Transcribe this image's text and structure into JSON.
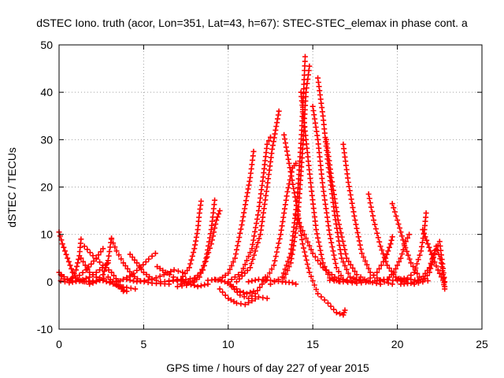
{
  "chart_data": {
    "type": "scatter",
    "title": "dSTEC Iono. truth (acor, Lon=351, Lat=43, h=67): STEC-STEC_elemax in phase cont. a",
    "xlabel": "GPS time / hours of day 227 of year 2015",
    "ylabel": "dSTEC  / TECUs",
    "xlim": [
      0,
      25
    ],
    "ylim": [
      -10,
      50
    ],
    "xticks": [
      "0",
      "5",
      "10",
      "15",
      "20",
      "25"
    ],
    "yticks": [
      "-10",
      "0",
      "10",
      "20",
      "30",
      "40",
      "50"
    ],
    "grid": true,
    "marker": "+",
    "color": "#ff0000",
    "series": [
      {
        "values": [
          [
            0.0,
            10.5
          ],
          [
            0.2,
            8
          ],
          [
            0.5,
            5
          ],
          [
            0.8,
            2
          ],
          [
            1.1,
            0.5
          ],
          [
            1.5,
            0
          ],
          [
            2.0,
            0.2
          ]
        ]
      },
      {
        "values": [
          [
            0.0,
            2.0
          ],
          [
            0.3,
            0.6
          ],
          [
            0.7,
            0.2
          ],
          [
            1.0,
            2.5
          ],
          [
            1.2,
            5.5
          ],
          [
            1.3,
            9.0
          ]
        ]
      },
      {
        "values": [
          [
            0.1,
            1.5
          ],
          [
            0.5,
            0.6
          ],
          [
            1.0,
            0.8
          ],
          [
            1.6,
            2.5
          ],
          [
            2.2,
            5.0
          ],
          [
            2.6,
            7.0
          ]
        ]
      },
      {
        "values": [
          [
            0.1,
            0.2
          ],
          [
            0.6,
            -0.2
          ],
          [
            1.2,
            0.2
          ],
          [
            1.8,
            1.0
          ],
          [
            2.4,
            2.5
          ],
          [
            2.9,
            4.0
          ]
        ]
      },
      {
        "values": [
          [
            1.3,
            5.0
          ],
          [
            1.8,
            2.0
          ],
          [
            2.4,
            0.5
          ],
          [
            3.0,
            -0.2
          ],
          [
            3.6,
            -1.0
          ],
          [
            4.0,
            -1.2
          ],
          [
            4.5,
            -1.5
          ]
        ]
      },
      {
        "values": [
          [
            1.5,
            7.5
          ],
          [
            2.0,
            5.5
          ],
          [
            2.6,
            3.5
          ],
          [
            3.1,
            2.0
          ],
          [
            3.5,
            0.0
          ],
          [
            3.8,
            -2.0
          ]
        ]
      },
      {
        "values": [
          [
            1.8,
            -0.5
          ],
          [
            2.4,
            0.3
          ],
          [
            2.9,
            1.0
          ],
          [
            3.3,
            -0.5
          ],
          [
            3.7,
            -1.5
          ],
          [
            4.0,
            -2.0
          ]
        ]
      },
      {
        "values": [
          [
            1.0,
            0.2
          ],
          [
            1.6,
            0.0
          ],
          [
            2.2,
            0.2
          ],
          [
            2.6,
            1.5
          ],
          [
            2.9,
            4.5
          ],
          [
            3.1,
            9.2
          ]
        ]
      },
      {
        "values": [
          [
            3.1,
            9.0
          ],
          [
            3.4,
            6.5
          ],
          [
            3.8,
            4.0
          ],
          [
            4.3,
            1.5
          ],
          [
            4.8,
            0.2
          ],
          [
            5.5,
            -0.3
          ],
          [
            6.5,
            -0.5
          ]
        ]
      },
      {
        "values": [
          [
            3.0,
            0.0
          ],
          [
            3.6,
            0.2
          ],
          [
            4.2,
            1.2
          ],
          [
            4.8,
            3.0
          ],
          [
            5.3,
            4.8
          ],
          [
            5.7,
            6.0
          ]
        ]
      },
      {
        "values": [
          [
            4.2,
            5.8
          ],
          [
            4.6,
            4.0
          ],
          [
            5.0,
            2.0
          ],
          [
            5.5,
            0.6
          ],
          [
            6.0,
            0.0
          ],
          [
            7.0,
            0.2
          ],
          [
            8.0,
            0.8
          ]
        ]
      },
      {
        "values": [
          [
            4.0,
            0.5
          ],
          [
            4.6,
            0.0
          ],
          [
            5.5,
            0.5
          ],
          [
            6.2,
            1.5
          ],
          [
            6.8,
            2.5
          ],
          [
            7.3,
            2.0
          ]
        ]
      },
      {
        "values": [
          [
            5.8,
            3.2
          ],
          [
            6.3,
            2.0
          ],
          [
            7.0,
            0.5
          ],
          [
            7.6,
            -0.3
          ],
          [
            8.2,
            -1.0
          ],
          [
            8.8,
            -0.5
          ]
        ]
      },
      {
        "values": [
          [
            6.5,
            0.2
          ],
          [
            7.2,
            0.5
          ],
          [
            7.7,
            3.0
          ],
          [
            8.0,
            7.0
          ],
          [
            8.2,
            11.0
          ],
          [
            8.3,
            14.5
          ],
          [
            8.4,
            17.0
          ]
        ]
      },
      {
        "values": [
          [
            7.2,
            -0.5
          ],
          [
            7.9,
            0.2
          ],
          [
            8.5,
            2.5
          ],
          [
            9.0,
            8.0
          ],
          [
            9.3,
            13.0
          ],
          [
            9.5,
            15.0
          ]
        ]
      },
      {
        "values": [
          [
            7.0,
            -1.0
          ],
          [
            7.8,
            -0.6
          ],
          [
            8.3,
            1.0
          ],
          [
            8.7,
            5.0
          ],
          [
            9.0,
            11.0
          ],
          [
            9.2,
            17.2
          ]
        ]
      },
      {
        "values": [
          [
            8.8,
            0.3
          ],
          [
            9.5,
            0.5
          ],
          [
            10.0,
            1.8
          ],
          [
            10.4,
            5.0
          ],
          [
            10.8,
            12.0
          ],
          [
            11.1,
            18.0
          ],
          [
            11.3,
            22.0
          ],
          [
            11.5,
            27.5
          ]
        ]
      },
      {
        "values": [
          [
            9.2,
            0.5
          ],
          [
            9.8,
            0.0
          ],
          [
            10.3,
            -1.0
          ],
          [
            10.7,
            -2.0
          ],
          [
            11.1,
            -2.5
          ],
          [
            11.5,
            -2.0
          ]
        ]
      },
      {
        "values": [
          [
            9.5,
            -1.5
          ],
          [
            10.0,
            -3.5
          ],
          [
            10.5,
            -4.5
          ],
          [
            11.0,
            -4.8
          ],
          [
            11.4,
            -4.0
          ],
          [
            11.8,
            -3.2
          ],
          [
            12.3,
            -3.5
          ]
        ]
      },
      {
        "values": [
          [
            10.2,
            -1.0
          ],
          [
            10.7,
            -2.8
          ],
          [
            11.2,
            -3.5
          ],
          [
            11.6,
            -2.5
          ],
          [
            12.0,
            -0.5
          ],
          [
            12.2,
            1.0
          ]
        ]
      },
      {
        "values": [
          [
            10.0,
            0.0
          ],
          [
            10.8,
            2.0
          ],
          [
            11.4,
            7.0
          ],
          [
            11.8,
            15.0
          ],
          [
            12.1,
            23.0
          ],
          [
            12.3,
            29.0
          ],
          [
            12.5,
            30.5
          ]
        ]
      },
      {
        "values": [
          [
            10.5,
            0.0
          ],
          [
            11.3,
            3.0
          ],
          [
            11.9,
            10.0
          ],
          [
            12.3,
            20.0
          ],
          [
            12.6,
            28.0
          ],
          [
            12.8,
            32.0
          ],
          [
            13.0,
            36.0
          ]
        ]
      },
      {
        "values": [
          [
            11.2,
            0.0
          ],
          [
            11.8,
            0.5
          ],
          [
            12.5,
            0.3
          ],
          [
            13.2,
            0.0
          ],
          [
            13.8,
            -0.2
          ],
          [
            14.0,
            -0.5
          ]
        ]
      },
      {
        "values": [
          [
            12.2,
            0.2
          ],
          [
            12.7,
            3.5
          ],
          [
            13.1,
            10.0
          ],
          [
            13.5,
            19.0
          ],
          [
            13.8,
            24.0
          ],
          [
            14.0,
            25.0
          ]
        ]
      },
      {
        "values": [
          [
            12.5,
            -0.5
          ],
          [
            13.2,
            1.0
          ],
          [
            13.7,
            6.0
          ],
          [
            14.1,
            18.0
          ],
          [
            14.35,
            32.0
          ],
          [
            14.55,
            47.5
          ]
        ]
      },
      {
        "values": [
          [
            13.2,
            0.0
          ],
          [
            13.7,
            4.0
          ],
          [
            14.1,
            13.0
          ],
          [
            14.4,
            28.0
          ],
          [
            14.6,
            40.0
          ],
          [
            14.8,
            45.5
          ]
        ]
      },
      {
        "values": [
          [
            13.3,
            31.0
          ],
          [
            13.6,
            25.0
          ],
          [
            14.0,
            17.0
          ],
          [
            14.4,
            8.0
          ],
          [
            14.8,
            2.0
          ],
          [
            15.3,
            -2.5
          ],
          [
            15.9,
            -4.5
          ],
          [
            16.4,
            -6.5
          ],
          [
            16.8,
            -7.0
          ],
          [
            16.9,
            -6.0
          ]
        ]
      },
      {
        "values": [
          [
            14.3,
            40.0
          ],
          [
            14.6,
            30.0
          ],
          [
            14.9,
            20.0
          ],
          [
            15.2,
            11.0
          ],
          [
            15.6,
            4.0
          ],
          [
            16.0,
            0.8
          ],
          [
            16.6,
            0.0
          ]
        ]
      },
      {
        "values": [
          [
            15.0,
            37.0
          ],
          [
            15.3,
            30.0
          ],
          [
            15.6,
            20.0
          ],
          [
            16.0,
            10.0
          ],
          [
            16.4,
            3.0
          ],
          [
            16.8,
            0.5
          ],
          [
            17.5,
            0.0
          ]
        ]
      },
      {
        "values": [
          [
            15.3,
            43.0
          ],
          [
            15.6,
            35.0
          ],
          [
            15.9,
            25.0
          ],
          [
            16.3,
            14.0
          ],
          [
            16.7,
            5.0
          ],
          [
            17.2,
            1.0
          ],
          [
            17.8,
            0.2
          ]
        ]
      },
      {
        "values": [
          [
            15.8,
            30.0
          ],
          [
            16.1,
            22.0
          ],
          [
            16.5,
            13.0
          ],
          [
            17.0,
            5.0
          ],
          [
            17.6,
            1.5
          ],
          [
            18.3,
            0.0
          ],
          [
            19.0,
            -0.5
          ]
        ]
      },
      {
        "values": [
          [
            16.8,
            29.0
          ],
          [
            17.1,
            21.0
          ],
          [
            17.5,
            13.0
          ],
          [
            17.9,
            6.0
          ],
          [
            18.4,
            2.0
          ],
          [
            19.0,
            0.2
          ],
          [
            19.7,
            -0.5
          ]
        ]
      },
      {
        "values": [
          [
            14.0,
            14.0
          ],
          [
            14.5,
            10.0
          ],
          [
            15.0,
            6.0
          ],
          [
            15.6,
            3.0
          ],
          [
            16.3,
            1.0
          ],
          [
            17.0,
            0.2
          ]
        ]
      },
      {
        "values": [
          [
            18.3,
            18.5
          ],
          [
            18.6,
            13.0
          ],
          [
            19.0,
            7.5
          ],
          [
            19.4,
            3.5
          ],
          [
            19.9,
            1.0
          ],
          [
            20.5,
            0.0
          ]
        ]
      },
      {
        "values": [
          [
            17.5,
            0.5
          ],
          [
            18.2,
            0.2
          ],
          [
            18.8,
            2.0
          ],
          [
            19.3,
            5.0
          ],
          [
            19.6,
            8.0
          ],
          [
            19.7,
            9.5
          ]
        ]
      },
      {
        "values": [
          [
            19.7,
            16.5
          ],
          [
            20.0,
            13.0
          ],
          [
            20.4,
            8.0
          ],
          [
            20.8,
            4.0
          ],
          [
            21.3,
            1.0
          ],
          [
            21.8,
            0.2
          ]
        ]
      },
      {
        "values": [
          [
            18.8,
            0.3
          ],
          [
            19.4,
            0.5
          ],
          [
            19.8,
            2.0
          ],
          [
            20.2,
            5.0
          ],
          [
            20.5,
            8.5
          ],
          [
            20.7,
            10.0
          ]
        ]
      },
      {
        "values": [
          [
            20.0,
            0.5
          ],
          [
            20.6,
            0.8
          ],
          [
            21.0,
            2.0
          ],
          [
            21.4,
            6.5
          ],
          [
            21.6,
            11.0
          ],
          [
            21.7,
            14.5
          ]
        ]
      },
      {
        "values": [
          [
            21.5,
            11.0
          ],
          [
            21.8,
            8.0
          ],
          [
            22.1,
            5.0
          ],
          [
            22.4,
            2.5
          ],
          [
            22.7,
            0.3
          ],
          [
            22.8,
            -1.5
          ]
        ]
      },
      {
        "values": [
          [
            21.0,
            -0.5
          ],
          [
            21.5,
            0.0
          ],
          [
            21.9,
            2.0
          ],
          [
            22.2,
            6.0
          ],
          [
            22.5,
            8.5
          ],
          [
            22.8,
            0.0
          ]
        ]
      },
      {
        "values": [
          [
            20.2,
            -0.5
          ],
          [
            20.8,
            -0.3
          ],
          [
            21.4,
            0.5
          ],
          [
            21.9,
            3.0
          ],
          [
            22.3,
            7.5
          ],
          [
            22.6,
            4.0
          ],
          [
            22.8,
            -1.0
          ]
        ]
      },
      {
        "values": [
          [
            16.0,
            0.3
          ],
          [
            16.8,
            0.0
          ],
          [
            17.6,
            -0.3
          ],
          [
            18.4,
            0.0
          ],
          [
            19.2,
            0.5
          ],
          [
            20.0,
            0.2
          ],
          [
            20.8,
            0.5
          ],
          [
            21.5,
            0.0
          ]
        ]
      }
    ]
  }
}
